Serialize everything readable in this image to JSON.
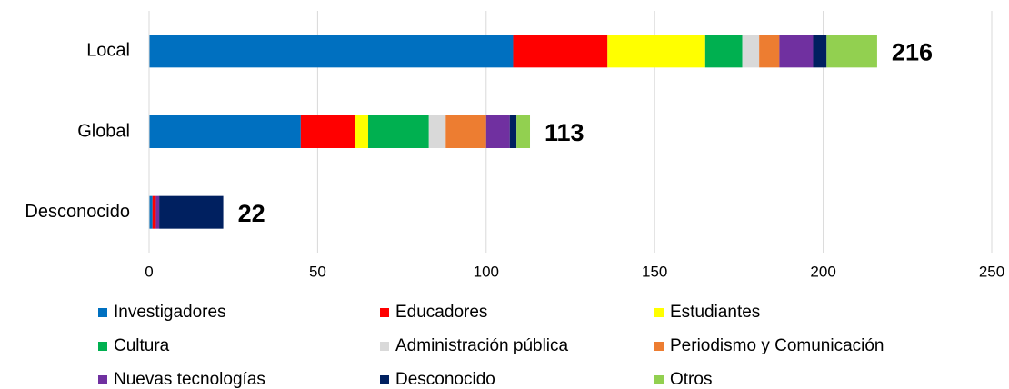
{
  "chart_data": {
    "type": "stacked_barh",
    "categories": [
      "Local",
      "Global",
      "Desconocido"
    ],
    "series": [
      {
        "name": "Investigadores",
        "color": "#0070c0",
        "values": [
          108,
          45,
          1
        ]
      },
      {
        "name": "Educadores",
        "color": "#ff0000",
        "values": [
          28,
          16,
          1
        ]
      },
      {
        "name": "Estudiantes",
        "color": "#ffff00",
        "values": [
          29,
          4,
          0
        ]
      },
      {
        "name": "Cultura",
        "color": "#00b050",
        "values": [
          11,
          18,
          0
        ]
      },
      {
        "name": "Administración pública",
        "color": "#d9d9d9",
        "values": [
          5,
          5,
          0
        ]
      },
      {
        "name": "Periodismo y Comunicación",
        "color": "#ed7d31",
        "values": [
          6,
          12,
          0
        ]
      },
      {
        "name": "Nuevas tecnologías",
        "color": "#7030a0",
        "values": [
          10,
          7,
          1
        ]
      },
      {
        "name": "Desconocido",
        "color": "#002060",
        "values": [
          4,
          2,
          19
        ]
      },
      {
        "name": "Otros",
        "color": "#92d050",
        "values": [
          15,
          4,
          0
        ]
      }
    ],
    "totals": [
      216,
      113,
      22
    ],
    "xlim": [
      0,
      250
    ],
    "xticks": [
      0,
      50,
      100,
      150,
      200,
      250
    ],
    "grid": true
  }
}
